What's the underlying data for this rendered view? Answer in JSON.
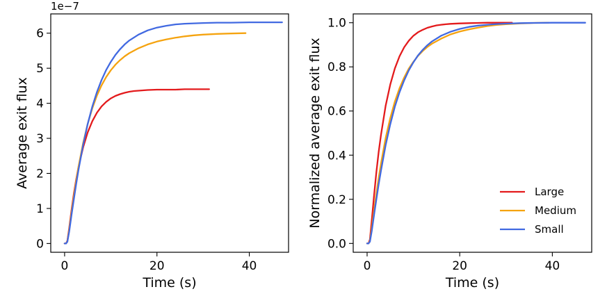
{
  "chart_data": [
    {
      "type": "line",
      "xlabel": "Time (s)",
      "ylabel": "Average exit flux",
      "offset_text": "1e−7",
      "xlim": [
        -3,
        48.5
      ],
      "ylim": [
        -0.25,
        6.55
      ],
      "xticks": [
        0,
        20,
        40
      ],
      "xtick_labels": [
        "0",
        "20",
        "40"
      ],
      "yticks": [
        0,
        1,
        2,
        3,
        4,
        5,
        6
      ],
      "ytick_labels": [
        "0",
        "1",
        "2",
        "3",
        "4",
        "5",
        "6"
      ],
      "series": [
        {
          "name": "Large",
          "color": "#e31a1c",
          "x": [
            0,
            0.3,
            0.6,
            1,
            1.5,
            2,
            2.5,
            3,
            4,
            5,
            6,
            7,
            8,
            9,
            10,
            11,
            12,
            13,
            14,
            15,
            16,
            17,
            18,
            20,
            22,
            24,
            26,
            28,
            30,
            31.3
          ],
          "y": [
            0,
            0,
            0.08,
            0.45,
            0.96,
            1.42,
            1.82,
            2.17,
            2.74,
            3.17,
            3.49,
            3.73,
            3.91,
            4.04,
            4.14,
            4.21,
            4.26,
            4.3,
            4.33,
            4.35,
            4.36,
            4.37,
            4.38,
            4.39,
            4.39,
            4.39,
            4.4,
            4.4,
            4.4,
            4.4
          ]
        },
        {
          "name": "Medium",
          "color": "#f5a30f",
          "x": [
            0,
            0.3,
            0.6,
            1,
            1.5,
            2,
            2.5,
            3,
            4,
            5,
            6,
            7,
            8,
            9,
            10,
            11,
            12,
            13,
            14,
            16,
            18,
            20,
            22,
            24,
            26,
            28,
            30,
            33,
            36,
            39.2
          ],
          "y": [
            0,
            0,
            0.06,
            0.4,
            0.89,
            1.35,
            1.78,
            2.18,
            2.86,
            3.41,
            3.86,
            4.22,
            4.51,
            4.75,
            4.94,
            5.1,
            5.23,
            5.34,
            5.43,
            5.57,
            5.68,
            5.76,
            5.82,
            5.87,
            5.91,
            5.94,
            5.96,
            5.98,
            5.99,
            6.0
          ]
        },
        {
          "name": "Small",
          "color": "#4169e1",
          "x": [
            0,
            0.3,
            0.6,
            1,
            1.5,
            2,
            2.5,
            3,
            4,
            5,
            6,
            7,
            8,
            9,
            10,
            11,
            12,
            13,
            14,
            16,
            18,
            20,
            22,
            24,
            26,
            28,
            30,
            33,
            36,
            40,
            44,
            47.1
          ],
          "y": [
            0,
            0,
            0.05,
            0.35,
            0.82,
            1.26,
            1.69,
            2.09,
            2.81,
            3.41,
            3.91,
            4.32,
            4.66,
            4.95,
            5.18,
            5.38,
            5.54,
            5.68,
            5.79,
            5.96,
            6.08,
            6.16,
            6.21,
            6.25,
            6.27,
            6.28,
            6.29,
            6.3,
            6.3,
            6.31,
            6.31,
            6.31
          ]
        }
      ]
    },
    {
      "type": "line",
      "xlabel": "Time (s)",
      "ylabel": "Normalized average exit flux",
      "xlim": [
        -3,
        48.5
      ],
      "ylim": [
        -0.04,
        1.04
      ],
      "xticks": [
        0,
        20,
        40
      ],
      "xtick_labels": [
        "0",
        "20",
        "40"
      ],
      "yticks": [
        0,
        0.2,
        0.4,
        0.6,
        0.8,
        1.0
      ],
      "ytick_labels": [
        "0.0",
        "0.2",
        "0.4",
        "0.6",
        "0.8",
        "1.0"
      ],
      "legend": {
        "position": "lower-right",
        "entries": [
          "Large",
          "Medium",
          "Small"
        ]
      },
      "series": [
        {
          "name": "Large",
          "color": "#e31a1c",
          "x": [
            0,
            0.3,
            0.6,
            1,
            1.5,
            2,
            2.5,
            3,
            4,
            5,
            6,
            7,
            8,
            9,
            10,
            11,
            12,
            13,
            14,
            15,
            16,
            17,
            18,
            20,
            22,
            24,
            26,
            28,
            30,
            31.3
          ],
          "y": [
            0,
            0,
            0.018,
            0.102,
            0.218,
            0.323,
            0.414,
            0.493,
            0.623,
            0.72,
            0.793,
            0.848,
            0.889,
            0.918,
            0.941,
            0.957,
            0.968,
            0.977,
            0.983,
            0.988,
            0.991,
            0.993,
            0.995,
            0.997,
            0.998,
            0.999,
            1.0,
            1.0,
            1.0,
            1.0
          ]
        },
        {
          "name": "Medium",
          "color": "#f5a30f",
          "x": [
            0,
            0.3,
            0.6,
            1,
            1.5,
            2,
            2.5,
            3,
            4,
            5,
            6,
            7,
            8,
            9,
            10,
            11,
            12,
            13,
            14,
            16,
            18,
            20,
            22,
            24,
            26,
            28,
            30,
            33,
            36,
            39.2
          ],
          "y": [
            0,
            0,
            0.01,
            0.067,
            0.148,
            0.225,
            0.297,
            0.363,
            0.477,
            0.568,
            0.643,
            0.703,
            0.752,
            0.792,
            0.823,
            0.85,
            0.872,
            0.89,
            0.905,
            0.928,
            0.947,
            0.96,
            0.97,
            0.978,
            0.985,
            0.99,
            0.993,
            0.997,
            0.999,
            1.0
          ]
        },
        {
          "name": "Small",
          "color": "#4169e1",
          "x": [
            0,
            0.3,
            0.6,
            1,
            1.5,
            2,
            2.5,
            3,
            4,
            5,
            6,
            7,
            8,
            9,
            10,
            11,
            12,
            13,
            14,
            16,
            18,
            20,
            22,
            24,
            26,
            28,
            30,
            33,
            36,
            40,
            44,
            47.1
          ],
          "y": [
            0,
            0,
            0.008,
            0.055,
            0.13,
            0.2,
            0.268,
            0.331,
            0.445,
            0.54,
            0.62,
            0.685,
            0.739,
            0.784,
            0.821,
            0.852,
            0.877,
            0.898,
            0.915,
            0.941,
            0.959,
            0.972,
            0.981,
            0.987,
            0.991,
            0.994,
            0.996,
            0.998,
            0.999,
            1.0,
            1.0,
            1.0
          ]
        }
      ]
    }
  ]
}
